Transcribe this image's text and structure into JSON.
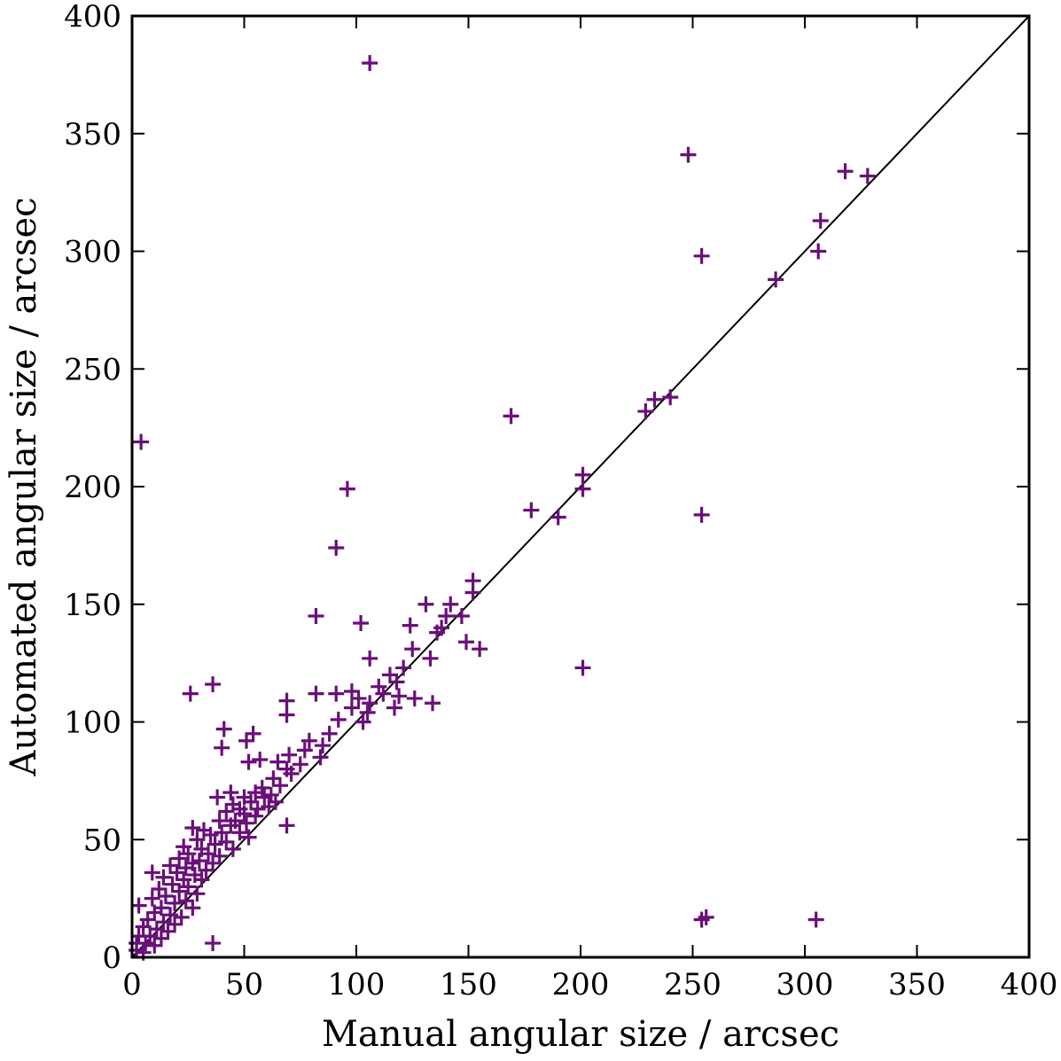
{
  "chart_data": {
    "type": "scatter",
    "xlabel": "Manual angular size / arcsec",
    "ylabel": "Automated angular size / arcsec",
    "xlim": [
      0,
      400
    ],
    "ylim": [
      0,
      400
    ],
    "xticks": [
      0,
      50,
      100,
      150,
      200,
      250,
      300,
      350,
      400
    ],
    "yticks": [
      0,
      50,
      100,
      150,
      200,
      250,
      300,
      350,
      400
    ],
    "grid": false,
    "legend": "none",
    "marker": "plus",
    "marker_color": "#6a0f7a",
    "reference_line": {
      "kind": "identity",
      "from": [
        0,
        0
      ],
      "to": [
        400,
        400
      ],
      "color": "#000000"
    },
    "series": [
      {
        "points": [
          [
            106,
            380
          ],
          [
            248,
            341
          ],
          [
            318,
            334
          ],
          [
            328,
            332
          ],
          [
            307,
            313
          ],
          [
            254,
            298
          ],
          [
            306,
            300
          ],
          [
            287,
            288
          ],
          [
            240,
            238
          ],
          [
            233,
            237
          ],
          [
            229,
            232
          ],
          [
            169,
            230
          ],
          [
            4,
            219
          ],
          [
            201,
            205
          ],
          [
            201,
            199
          ],
          [
            96,
            199
          ],
          [
            178,
            190
          ],
          [
            190,
            187
          ],
          [
            254,
            188
          ],
          [
            91,
            174
          ],
          [
            152,
            160
          ],
          [
            152,
            155
          ],
          [
            131,
            150
          ],
          [
            142,
            150
          ],
          [
            82,
            145
          ],
          [
            140,
            145
          ],
          [
            147,
            145
          ],
          [
            102,
            142
          ],
          [
            124,
            141
          ],
          [
            138,
            140
          ],
          [
            136,
            138
          ],
          [
            149,
            134
          ],
          [
            155,
            131
          ],
          [
            125,
            131
          ],
          [
            133,
            127
          ],
          [
            106,
            127
          ],
          [
            121,
            123
          ],
          [
            201,
            123
          ],
          [
            115,
            120
          ],
          [
            118,
            117
          ],
          [
            36,
            116
          ],
          [
            110,
            115
          ],
          [
            98,
            113
          ],
          [
            112,
            112
          ],
          [
            82,
            112
          ],
          [
            26,
            112
          ],
          [
            91,
            112
          ],
          [
            119,
            111
          ],
          [
            126,
            110
          ],
          [
            69,
            109
          ],
          [
            101,
            110
          ],
          [
            134,
            108
          ],
          [
            106,
            108
          ],
          [
            98,
            106
          ],
          [
            117,
            106
          ],
          [
            105,
            104
          ],
          [
            69,
            103
          ],
          [
            103,
            100
          ],
          [
            41,
            97
          ],
          [
            92,
            101
          ],
          [
            88,
            95
          ],
          [
            54,
            95
          ],
          [
            79,
            92
          ],
          [
            85,
            90
          ],
          [
            51,
            92
          ],
          [
            40,
            89
          ],
          [
            77,
            88
          ],
          [
            70,
            86
          ],
          [
            84,
            85
          ],
          [
            65,
            83
          ],
          [
            52,
            83
          ],
          [
            57,
            84
          ],
          [
            75,
            82
          ],
          [
            69,
            80
          ],
          [
            71,
            78
          ],
          [
            63,
            76
          ],
          [
            66,
            73
          ],
          [
            58,
            72
          ],
          [
            44,
            70
          ],
          [
            55,
            70
          ],
          [
            62,
            69
          ],
          [
            50,
            68
          ],
          [
            38,
            68
          ],
          [
            59,
            68
          ],
          [
            53,
            66
          ],
          [
            45,
            65
          ],
          [
            64,
            66
          ],
          [
            48,
            63
          ],
          [
            56,
            63
          ],
          [
            61,
            64
          ],
          [
            42,
            62
          ],
          [
            50,
            61
          ],
          [
            55,
            60
          ],
          [
            46,
            58
          ],
          [
            39,
            58
          ],
          [
            51,
            57
          ],
          [
            44,
            56
          ],
          [
            69,
            56
          ],
          [
            32,
            54
          ],
          [
            27,
            55
          ],
          [
            48,
            53
          ],
          [
            40,
            53
          ],
          [
            35,
            52
          ],
          [
            52,
            51
          ],
          [
            29,
            50
          ],
          [
            42,
            49
          ],
          [
            37,
            48
          ],
          [
            23,
            47
          ],
          [
            31,
            46
          ],
          [
            45,
            46
          ],
          [
            25,
            44
          ],
          [
            34,
            44
          ],
          [
            39,
            43
          ],
          [
            21,
            42
          ],
          [
            30,
            41
          ],
          [
            27,
            40
          ],
          [
            36,
            40
          ],
          [
            17,
            39
          ],
          [
            24,
            38
          ],
          [
            33,
            37
          ],
          [
            20,
            36
          ],
          [
            9,
            36
          ],
          [
            28,
            35
          ],
          [
            14,
            34
          ],
          [
            23,
            33
          ],
          [
            31,
            33
          ],
          [
            18,
            31
          ],
          [
            25,
            30
          ],
          [
            12,
            29
          ],
          [
            21,
            28
          ],
          [
            29,
            27
          ],
          [
            15,
            26
          ],
          [
            9,
            25
          ],
          [
            24,
            24
          ],
          [
            19,
            23
          ],
          [
            3,
            22
          ],
          [
            13,
            21
          ],
          [
            27,
            21
          ],
          [
            10,
            19
          ],
          [
            17,
            18
          ],
          [
            22,
            17
          ],
          [
            7,
            16
          ],
          [
            14,
            15
          ],
          [
            19,
            14
          ],
          [
            5,
            13
          ],
          [
            11,
            12
          ],
          [
            16,
            11
          ],
          [
            3,
            9
          ],
          [
            8,
            9
          ],
          [
            13,
            8
          ],
          [
            2,
            6
          ],
          [
            6,
            6
          ],
          [
            10,
            5
          ],
          [
            2,
            3
          ],
          [
            5,
            2
          ],
          [
            36,
            6
          ],
          [
            254,
            16
          ],
          [
            256,
            17
          ],
          [
            305,
            16
          ]
        ]
      }
    ]
  }
}
